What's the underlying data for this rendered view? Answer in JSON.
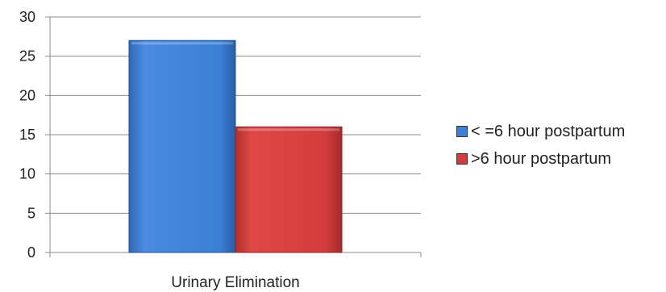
{
  "chart_data": {
    "type": "bar",
    "categories": [
      "Urinary Elimination"
    ],
    "series": [
      {
        "name": "< =6 hour postpartum",
        "values": [
          27
        ],
        "color": "#3b7fd6"
      },
      {
        "name": ">6 hour postpartum",
        "values": [
          16
        ],
        "color": "#d23c3c"
      }
    ],
    "ylim": [
      0,
      30
    ],
    "yticks": [
      0,
      5,
      10,
      15,
      20,
      25,
      30
    ],
    "grid": true,
    "legend": "right",
    "style": "3d-beveled"
  }
}
